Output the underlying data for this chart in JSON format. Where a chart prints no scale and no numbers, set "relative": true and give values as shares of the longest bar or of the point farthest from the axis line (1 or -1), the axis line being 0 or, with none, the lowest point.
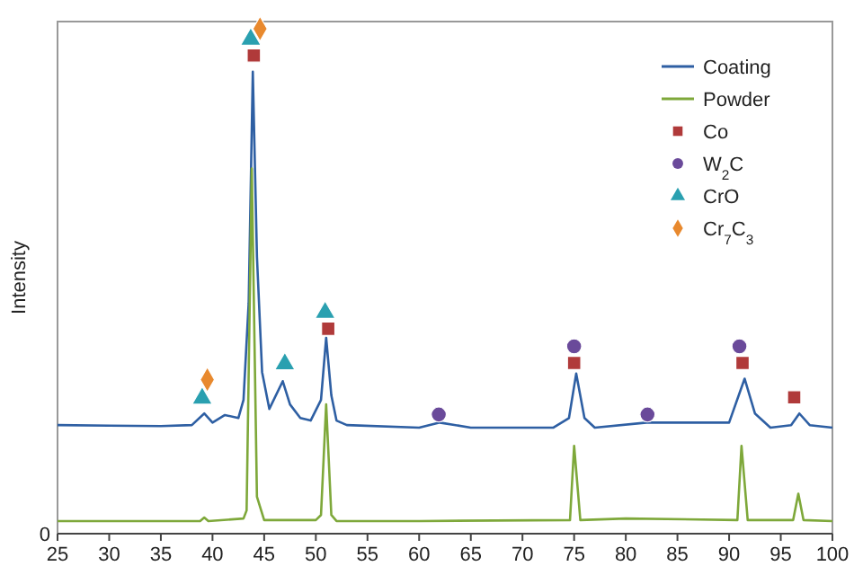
{
  "chart_data": {
    "type": "line",
    "relative": true,
    "ylabel": "Intensity",
    "xlim": [
      25,
      100
    ],
    "xticks": [
      25,
      30,
      35,
      40,
      45,
      50,
      55,
      60,
      65,
      70,
      75,
      80,
      85,
      90,
      95,
      100
    ],
    "grid": false,
    "legend": "top right",
    "line_style": "solid",
    "annotations": [
      "0"
    ],
    "series": [
      {
        "name": "Coating",
        "color": "#2e5fa3",
        "marker": "none",
        "x": [
          25,
          30,
          35,
          38,
          39.2,
          40,
          41.2,
          42.5,
          43,
          43.5,
          43.9,
          44.3,
          44.8,
          45.5,
          46.8,
          47.5,
          48.5,
          49.5,
          50.5,
          51,
          51.5,
          52,
          53,
          60,
          62,
          65,
          73,
          74.5,
          75.2,
          76,
          77,
          82,
          90,
          91.5,
          92.5,
          94,
          96,
          96.8,
          97.8,
          100
        ],
        "values": [
          0.215,
          0.214,
          0.213,
          0.215,
          0.238,
          0.22,
          0.235,
          0.229,
          0.265,
          0.457,
          0.915,
          0.549,
          0.32,
          0.247,
          0.302,
          0.256,
          0.229,
          0.224,
          0.265,
          0.388,
          0.274,
          0.224,
          0.215,
          0.21,
          0.22,
          0.21,
          0.21,
          0.229,
          0.317,
          0.229,
          0.21,
          0.22,
          0.22,
          0.307,
          0.238,
          0.21,
          0.215,
          0.238,
          0.215,
          0.21
        ]
      },
      {
        "name": "Powder",
        "color": "#7ea83a",
        "marker": "none",
        "x": [
          25,
          35,
          38.8,
          39.2,
          39.6,
          43,
          43.3,
          43.8,
          44.3,
          45,
          50,
          50.5,
          51,
          51.5,
          52,
          60,
          74.6,
          75,
          75.6,
          80,
          90.8,
          91.2,
          91.8,
          96.2,
          96.7,
          97.2,
          100
        ],
        "values": [
          0.025,
          0.025,
          0.025,
          0.032,
          0.025,
          0.03,
          0.046,
          0.723,
          0.073,
          0.027,
          0.027,
          0.037,
          0.256,
          0.037,
          0.025,
          0.025,
          0.027,
          0.174,
          0.027,
          0.03,
          0.027,
          0.174,
          0.027,
          0.027,
          0.079,
          0.027,
          0.025
        ]
      },
      {
        "name": "Co",
        "color": "#b03a3a",
        "type": "scatter",
        "marker": "square",
        "x": [
          44.0,
          51.2,
          75.0,
          91.3,
          96.3
        ],
        "values": [
          0.947,
          0.406,
          0.338,
          0.338,
          0.27
        ]
      },
      {
        "name": "W$_{2}$C",
        "color": "#6a4a9a",
        "type": "scatter",
        "marker": "circle",
        "x": [
          61.9,
          75.0,
          82.1,
          91.0
        ],
        "values": [
          0.236,
          0.371,
          0.236,
          0.371
        ]
      },
      {
        "name": "CrO",
        "color": "#2aa0b0",
        "type": "scatter",
        "marker": "triangle",
        "x": [
          39.0,
          43.7,
          47.0,
          50.9
        ],
        "values": [
          0.268,
          0.979,
          0.336,
          0.438
        ]
      },
      {
        "name": "Cr$_{7}$C$_{3}$",
        "color": "#e8892e",
        "type": "scatter",
        "marker": "diamond",
        "x": [
          39.5,
          44.6
        ],
        "values": [
          0.305,
          1.0
        ]
      }
    ]
  }
}
